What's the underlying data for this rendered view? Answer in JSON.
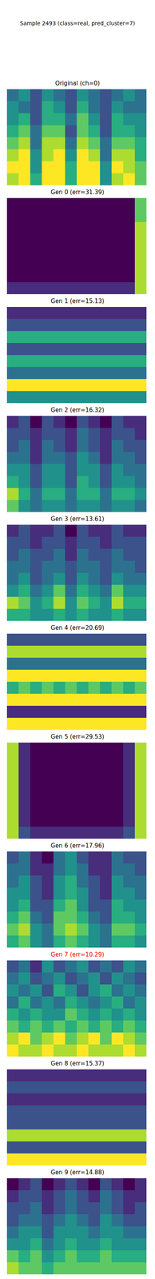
{
  "title": "Sample 2493 (class=real, pred_cluster=7)",
  "chart_data": [
    {
      "type": "heatmap",
      "title": "Original (ch=0)",
      "color": "black",
      "tick_labels": false,
      "cells": [
        [
          4,
          5,
          3,
          5,
          4,
          3,
          5,
          4,
          3,
          4,
          5,
          4
        ],
        [
          5,
          4,
          3,
          6,
          5,
          3,
          6,
          4,
          3,
          5,
          4,
          4
        ],
        [
          5,
          6,
          3,
          6,
          6,
          4,
          7,
          5,
          3,
          6,
          5,
          5
        ],
        [
          6,
          7,
          4,
          7,
          7,
          3,
          7,
          6,
          3,
          6,
          6,
          5
        ],
        [
          7,
          8,
          4,
          8,
          8,
          4,
          8,
          7,
          4,
          7,
          7,
          6
        ],
        [
          8,
          9,
          5,
          8,
          9,
          5,
          9,
          8,
          4,
          8,
          8,
          6
        ],
        [
          9,
          9,
          5,
          9,
          9,
          6,
          9,
          9,
          5,
          9,
          8,
          7
        ],
        [
          8,
          9,
          6,
          9,
          9,
          6,
          9,
          9,
          5,
          8,
          9,
          7
        ]
      ]
    },
    {
      "type": "heatmap",
      "title": "Gen 0 (err=31.39)",
      "color": "black",
      "tick_labels": false,
      "cells": [
        [
          1,
          1,
          1,
          1,
          1,
          1,
          1,
          1,
          1,
          1,
          1,
          7
        ],
        [
          1,
          1,
          1,
          1,
          1,
          1,
          1,
          1,
          1,
          1,
          1,
          7
        ],
        [
          1,
          1,
          1,
          1,
          1,
          1,
          1,
          1,
          1,
          1,
          1,
          8
        ],
        [
          1,
          1,
          1,
          1,
          1,
          1,
          1,
          1,
          1,
          1,
          1,
          8
        ],
        [
          1,
          1,
          1,
          1,
          1,
          1,
          1,
          1,
          1,
          1,
          1,
          8
        ],
        [
          1,
          1,
          1,
          1,
          1,
          1,
          1,
          1,
          1,
          1,
          1,
          8
        ],
        [
          1,
          1,
          1,
          1,
          1,
          1,
          1,
          1,
          1,
          1,
          1,
          8
        ],
        [
          2,
          2,
          2,
          2,
          2,
          2,
          2,
          2,
          2,
          2,
          2,
          8
        ]
      ]
    },
    {
      "type": "heatmap",
      "title": "Gen 1 (err=15.13)",
      "color": "black",
      "tick_labels": false,
      "cells": [
        [
          2,
          2,
          2,
          2,
          2,
          2,
          2,
          2,
          2,
          2,
          2,
          2
        ],
        [
          3,
          3,
          3,
          3,
          3,
          3,
          3,
          3,
          3,
          3,
          3,
          3
        ],
        [
          6,
          6,
          6,
          6,
          6,
          6,
          6,
          6,
          6,
          6,
          6,
          6
        ],
        [
          3,
          3,
          3,
          3,
          3,
          3,
          3,
          3,
          3,
          3,
          3,
          3
        ],
        [
          6,
          6,
          6,
          6,
          6,
          6,
          6,
          6,
          6,
          6,
          6,
          6
        ],
        [
          4,
          4,
          4,
          4,
          4,
          4,
          4,
          4,
          4,
          4,
          4,
          4
        ],
        [
          9,
          9,
          9,
          9,
          9,
          9,
          9,
          9,
          9,
          9,
          9,
          9
        ],
        [
          5,
          5,
          5,
          5,
          5,
          5,
          5,
          5,
          5,
          5,
          5,
          5
        ]
      ]
    },
    {
      "type": "heatmap",
      "title": "Gen 2 (err=16.32)",
      "color": "black",
      "tick_labels": false,
      "cells": [
        [
          2,
          3,
          1,
          3,
          2,
          1,
          3,
          2,
          1,
          3,
          2,
          2
        ],
        [
          3,
          3,
          2,
          3,
          3,
          2,
          4,
          3,
          2,
          3,
          3,
          2
        ],
        [
          3,
          4,
          2,
          4,
          3,
          2,
          4,
          3,
          2,
          4,
          3,
          3
        ],
        [
          4,
          4,
          2,
          4,
          4,
          3,
          5,
          4,
          2,
          4,
          4,
          3
        ],
        [
          5,
          5,
          3,
          5,
          5,
          3,
          5,
          5,
          3,
          5,
          4,
          4
        ],
        [
          6,
          5,
          3,
          5,
          5,
          3,
          6,
          5,
          3,
          5,
          5,
          4
        ],
        [
          8,
          6,
          4,
          6,
          6,
          4,
          6,
          6,
          4,
          6,
          6,
          5
        ],
        [
          7,
          5,
          4,
          5,
          5,
          4,
          5,
          5,
          4,
          5,
          5,
          4
        ]
      ]
    },
    {
      "type": "heatmap",
      "title": "Gen 3 (err=13.61)",
      "color": "black",
      "tick_labels": false,
      "cells": [
        [
          2,
          3,
          2,
          2,
          3,
          1,
          3,
          2,
          2,
          3,
          2,
          2
        ],
        [
          3,
          3,
          2,
          3,
          3,
          2,
          3,
          3,
          2,
          3,
          3,
          3
        ],
        [
          3,
          4,
          3,
          3,
          4,
          2,
          4,
          3,
          3,
          4,
          3,
          3
        ],
        [
          4,
          4,
          3,
          4,
          4,
          3,
          4,
          4,
          3,
          4,
          4,
          3
        ],
        [
          4,
          5,
          3,
          4,
          5,
          3,
          5,
          4,
          3,
          5,
          4,
          4
        ],
        [
          5,
          6,
          4,
          5,
          7,
          4,
          6,
          5,
          4,
          7,
          5,
          5
        ],
        [
          8,
          7,
          5,
          6,
          8,
          5,
          7,
          6,
          5,
          8,
          6,
          6
        ],
        [
          6,
          6,
          5,
          5,
          6,
          5,
          6,
          5,
          5,
          6,
          5,
          5
        ]
      ]
    },
    {
      "type": "heatmap",
      "title": "Gen 4 (err=20.69)",
      "color": "black",
      "tick_labels": false,
      "cells": [
        [
          3,
          3,
          3,
          3,
          3,
          3,
          3,
          3,
          3,
          3,
          3,
          3
        ],
        [
          8,
          8,
          8,
          8,
          8,
          8,
          8,
          8,
          8,
          8,
          8,
          8
        ],
        [
          4,
          4,
          4,
          4,
          4,
          4,
          4,
          4,
          4,
          4,
          4,
          4
        ],
        [
          9,
          9,
          9,
          9,
          9,
          9,
          9,
          9,
          9,
          9,
          9,
          9
        ],
        [
          6,
          7,
          6,
          7,
          6,
          7,
          6,
          7,
          6,
          7,
          6,
          7
        ],
        [
          9,
          9,
          9,
          9,
          9,
          9,
          9,
          9,
          9,
          9,
          9,
          9
        ],
        [
          2,
          2,
          2,
          2,
          2,
          2,
          2,
          2,
          2,
          2,
          2,
          2
        ],
        [
          9,
          9,
          9,
          9,
          9,
          9,
          9,
          9,
          9,
          9,
          9,
          9
        ]
      ]
    },
    {
      "type": "heatmap",
      "title": "Gen 5 (err=29.53)",
      "color": "black",
      "tick_labels": false,
      "cells": [
        [
          8,
          2,
          1,
          1,
          1,
          1,
          1,
          1,
          1,
          1,
          2,
          8
        ],
        [
          8,
          2,
          1,
          1,
          1,
          1,
          1,
          1,
          1,
          1,
          2,
          8
        ],
        [
          8,
          2,
          1,
          1,
          1,
          1,
          1,
          1,
          1,
          1,
          2,
          8
        ],
        [
          8,
          2,
          1,
          1,
          1,
          1,
          1,
          1,
          1,
          1,
          2,
          8
        ],
        [
          8,
          2,
          1,
          1,
          1,
          1,
          1,
          1,
          1,
          1,
          2,
          8
        ],
        [
          8,
          2,
          1,
          1,
          1,
          1,
          1,
          1,
          1,
          1,
          2,
          8
        ],
        [
          8,
          2,
          1,
          1,
          1,
          1,
          1,
          1,
          1,
          1,
          2,
          8
        ],
        [
          8,
          3,
          2,
          2,
          2,
          2,
          2,
          2,
          2,
          2,
          3,
          8
        ]
      ]
    },
    {
      "type": "heatmap",
      "title": "Gen 6 (err=17.96)",
      "color": "black",
      "tick_labels": false,
      "cells": [
        [
          3,
          4,
          2,
          1,
          4,
          5,
          3,
          2,
          2,
          4,
          3,
          3
        ],
        [
          4,
          4,
          2,
          2,
          4,
          5,
          4,
          2,
          2,
          4,
          4,
          3
        ],
        [
          4,
          5,
          3,
          2,
          5,
          6,
          4,
          3,
          2,
          5,
          4,
          4
        ],
        [
          5,
          5,
          3,
          2,
          5,
          6,
          5,
          3,
          2,
          5,
          5,
          4
        ],
        [
          5,
          6,
          3,
          3,
          6,
          7,
          5,
          3,
          3,
          6,
          5,
          5
        ],
        [
          6,
          7,
          4,
          3,
          7,
          7,
          6,
          4,
          3,
          6,
          6,
          5
        ],
        [
          7,
          8,
          5,
          4,
          7,
          8,
          7,
          5,
          4,
          7,
          7,
          6
        ],
        [
          6,
          7,
          5,
          4,
          6,
          7,
          6,
          5,
          4,
          6,
          6,
          5
        ]
      ]
    },
    {
      "type": "heatmap",
      "title": "Gen 7 (err=10.29)",
      "color": "red",
      "tick_labels": false,
      "cells": [
        [
          3,
          4,
          2,
          5,
          3,
          4,
          5,
          3,
          4,
          3,
          5,
          4
        ],
        [
          4,
          5,
          3,
          4,
          5,
          3,
          4,
          5,
          3,
          5,
          4,
          3
        ],
        [
          5,
          4,
          5,
          3,
          6,
          5,
          3,
          5,
          6,
          4,
          5,
          4
        ],
        [
          4,
          6,
          4,
          5,
          4,
          6,
          5,
          4,
          5,
          6,
          4,
          5
        ],
        [
          6,
          5,
          6,
          5,
          5,
          7,
          6,
          5,
          6,
          5,
          6,
          5
        ],
        [
          7,
          6,
          7,
          6,
          7,
          6,
          7,
          6,
          7,
          6,
          7,
          6
        ],
        [
          8,
          9,
          7,
          8,
          9,
          7,
          8,
          9,
          7,
          9,
          8,
          7
        ],
        [
          9,
          8,
          8,
          9,
          8,
          8,
          9,
          8,
          8,
          8,
          9,
          8
        ]
      ]
    },
    {
      "type": "heatmap",
      "title": "Gen 8 (err=15.37)",
      "color": "black",
      "tick_labels": false,
      "cells": [
        [
          2,
          2,
          2,
          2,
          2,
          2,
          2,
          2,
          2,
          2,
          2,
          2
        ],
        [
          3,
          3,
          3,
          3,
          3,
          3,
          3,
          3,
          3,
          3,
          3,
          3
        ],
        [
          2,
          2,
          2,
          2,
          2,
          2,
          2,
          2,
          2,
          2,
          2,
          2
        ],
        [
          3,
          3,
          3,
          3,
          3,
          3,
          3,
          3,
          3,
          3,
          3,
          3
        ],
        [
          3,
          3,
          3,
          3,
          3,
          3,
          3,
          3,
          3,
          3,
          3,
          3
        ],
        [
          8,
          8,
          8,
          8,
          8,
          8,
          8,
          8,
          8,
          8,
          8,
          8
        ],
        [
          3,
          3,
          3,
          3,
          3,
          3,
          3,
          3,
          3,
          3,
          3,
          3
        ],
        [
          9,
          9,
          9,
          9,
          9,
          9,
          9,
          9,
          9,
          9,
          9,
          9
        ]
      ]
    },
    {
      "type": "heatmap",
      "title": "Gen 9 (err=14.88)",
      "color": "black",
      "tick_labels": false,
      "cells": [
        [
          1,
          2,
          3,
          1,
          2,
          3,
          2,
          1,
          3,
          2,
          1,
          2
        ],
        [
          2,
          3,
          3,
          2,
          3,
          4,
          3,
          2,
          4,
          3,
          2,
          2
        ],
        [
          3,
          3,
          4,
          2,
          3,
          4,
          3,
          3,
          4,
          3,
          2,
          3
        ],
        [
          3,
          4,
          4,
          3,
          4,
          5,
          4,
          3,
          5,
          4,
          3,
          3
        ],
        [
          4,
          5,
          5,
          3,
          5,
          5,
          5,
          4,
          5,
          5,
          4,
          4
        ],
        [
          5,
          5,
          6,
          4,
          5,
          6,
          5,
          5,
          6,
          5,
          5,
          5
        ],
        [
          7,
          6,
          7,
          5,
          6,
          7,
          6,
          6,
          7,
          6,
          6,
          6
        ],
        [
          8,
          7,
          7,
          6,
          7,
          7,
          7,
          7,
          7,
          7,
          7,
          7
        ]
      ]
    }
  ]
}
